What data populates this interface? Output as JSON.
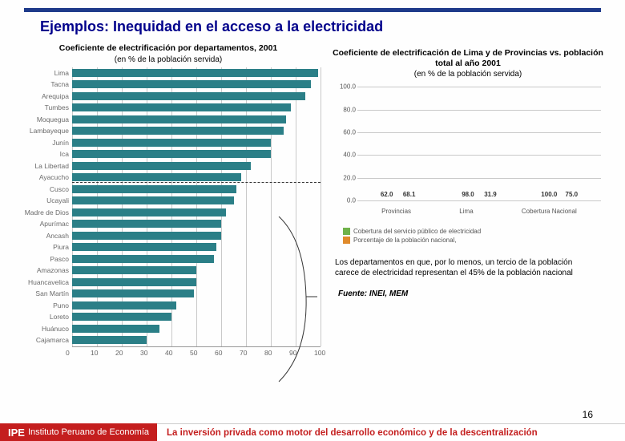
{
  "page": {
    "title": "Ejemplos: Inequidad en el acceso a la electricidad",
    "page_number": "16"
  },
  "left_chart": {
    "type": "horizontal-bar",
    "title": "Coeficiente de electrificación por departamentos, 2001",
    "subtitle": "(en % de la población servida)",
    "x_ticks": [
      0,
      10,
      20,
      30,
      40,
      50,
      60,
      70,
      80,
      90,
      100
    ],
    "bar_color": "#2b7f87",
    "label_color": "#6a6a6a",
    "grid_color": "#c9c9c9",
    "axis_color": "#999999",
    "font_size_label": 8.5,
    "divider_after_index": 9,
    "data": [
      {
        "label": "Lima",
        "value": 99
      },
      {
        "label": "Tacna",
        "value": 96
      },
      {
        "label": "Arequipa",
        "value": 94
      },
      {
        "label": "Tumbes",
        "value": 88
      },
      {
        "label": "Moquegua",
        "value": 86
      },
      {
        "label": "Lambayeque",
        "value": 85
      },
      {
        "label": "Junín",
        "value": 80
      },
      {
        "label": "Ica",
        "value": 80
      },
      {
        "label": "La Libertad",
        "value": 72
      },
      {
        "label": "Ayacucho",
        "value": 68
      },
      {
        "label": "Cusco",
        "value": 66
      },
      {
        "label": "Ucayali",
        "value": 65
      },
      {
        "label": "Madre de Dios",
        "value": 62
      },
      {
        "label": "Apurímac",
        "value": 60
      },
      {
        "label": "Ancash",
        "value": 60
      },
      {
        "label": "Piura",
        "value": 58
      },
      {
        "label": "Pasco",
        "value": 57
      },
      {
        "label": "Amazonas",
        "value": 50
      },
      {
        "label": "Huancavelica",
        "value": 50
      },
      {
        "label": "San Martín",
        "value": 49
      },
      {
        "label": "Puno",
        "value": 42
      },
      {
        "label": "Loreto",
        "value": 40
      },
      {
        "label": "Huánuco",
        "value": 35
      },
      {
        "label": "Cajamarca",
        "value": 30
      }
    ]
  },
  "right_chart": {
    "type": "grouped-bar",
    "title": "Coeficiente de electrificación de Lima y de Provincias vs. población total al año 2001",
    "subtitle": "(en % de la población servida)",
    "y_ticks": [
      0,
      20,
      40,
      60,
      80,
      100
    ],
    "series_colors": [
      "#6fb24a",
      "#e08a2b"
    ],
    "grid_color": "#c9c9c9",
    "value_label_color": "#333333",
    "font_size_value": 8,
    "categories": [
      {
        "label": "Provincias",
        "values": [
          62.0,
          68.1
        ]
      },
      {
        "label": "Lima",
        "values": [
          98.0,
          31.9
        ]
      },
      {
        "label": "Cobertura Nacional",
        "values": [
          100.0,
          75.0
        ]
      }
    ],
    "legend": [
      {
        "color": "#6fb24a",
        "label": "Cobertura del servicio público de electricidad"
      },
      {
        "color": "#e08a2b",
        "label": "Porcentaje de la población nacional,"
      }
    ]
  },
  "note": {
    "text": "Los departamentos en que, por lo menos, un tercio de la  población carece de electricidad representan el 45% de la población nacional"
  },
  "source": {
    "label": "Fuente: INEI, MEM"
  },
  "footer": {
    "logo_prefix": "IPE",
    "logo_text": "Instituto Peruano de Economía",
    "tagline": "La inversión privada como motor del desarrollo económico y de la descentralización"
  }
}
